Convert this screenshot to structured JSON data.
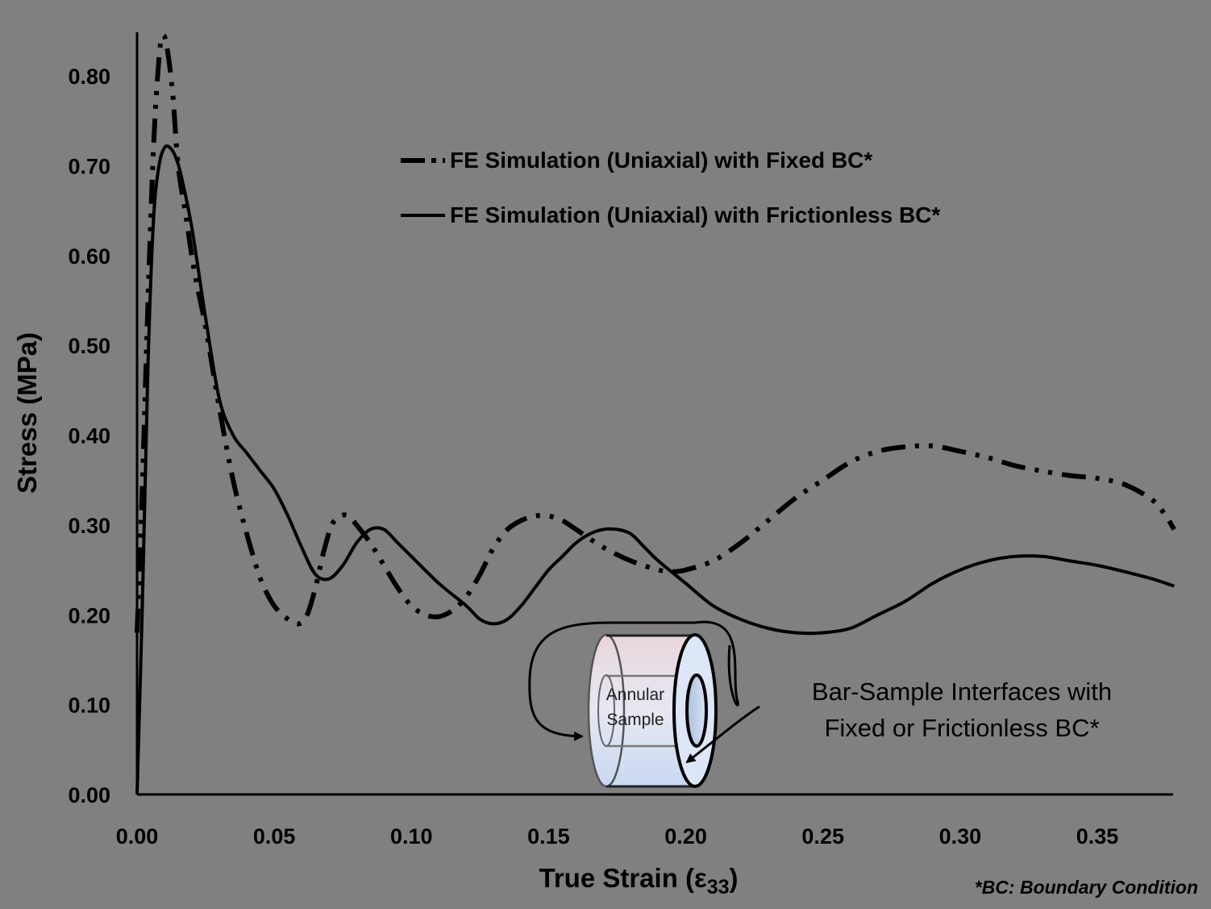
{
  "chart_data": {
    "type": "line",
    "xlabel_main": "True Strain (",
    "xlabel_symbol": "ε",
    "xlabel_sub": "33",
    "xlabel_end": ")",
    "ylabel": "Stress (MPa)",
    "xlim": [
      0,
      0.38
    ],
    "ylim": [
      0,
      0.85
    ],
    "x_ticks": [
      0,
      0.05,
      0.1,
      0.15,
      0.2,
      0.25,
      0.3,
      0.35
    ],
    "x_tick_labels": [
      "0.00",
      "0.05",
      "0.10",
      "0.15",
      "0.20",
      "0.25",
      "0.30",
      "0.35"
    ],
    "y_ticks": [
      0,
      0.1,
      0.2,
      0.3,
      0.4,
      0.5,
      0.6,
      0.7,
      0.8
    ],
    "y_tick_labels": [
      "0.00",
      "0.10",
      "0.20",
      "0.30",
      "0.40",
      "0.50",
      "0.60",
      "0.70",
      "0.80"
    ],
    "grid": false,
    "legend_position": "top-center",
    "series": [
      {
        "name": "FE Simulation (Uniaxial) with Fixed BC*",
        "style": "dash-dot-dot",
        "x": [
          0.0,
          0.002,
          0.004,
          0.006,
          0.008,
          0.0095,
          0.011,
          0.013,
          0.015,
          0.018,
          0.021,
          0.025,
          0.03,
          0.035,
          0.04,
          0.045,
          0.05,
          0.055,
          0.059,
          0.062,
          0.065,
          0.068,
          0.071,
          0.074,
          0.077,
          0.08,
          0.085,
          0.09,
          0.095,
          0.1,
          0.105,
          0.11,
          0.115,
          0.12,
          0.125,
          0.13,
          0.135,
          0.14,
          0.145,
          0.15,
          0.155,
          0.16,
          0.17,
          0.18,
          0.19,
          0.195,
          0.2,
          0.21,
          0.22,
          0.23,
          0.24,
          0.25,
          0.26,
          0.27,
          0.28,
          0.29,
          0.3,
          0.31,
          0.32,
          0.33,
          0.34,
          0.35,
          0.36,
          0.37,
          0.375,
          0.378
        ],
        "y": [
          0.18,
          0.35,
          0.55,
          0.72,
          0.82,
          0.845,
          0.83,
          0.78,
          0.7,
          0.64,
          0.58,
          0.52,
          0.43,
          0.35,
          0.29,
          0.24,
          0.21,
          0.195,
          0.19,
          0.2,
          0.23,
          0.27,
          0.3,
          0.31,
          0.31,
          0.3,
          0.28,
          0.255,
          0.23,
          0.21,
          0.2,
          0.198,
          0.205,
          0.22,
          0.245,
          0.275,
          0.295,
          0.305,
          0.31,
          0.31,
          0.305,
          0.295,
          0.275,
          0.26,
          0.25,
          0.248,
          0.25,
          0.26,
          0.28,
          0.305,
          0.33,
          0.35,
          0.37,
          0.382,
          0.387,
          0.388,
          0.382,
          0.375,
          0.366,
          0.36,
          0.355,
          0.352,
          0.345,
          0.328,
          0.31,
          0.295
        ]
      },
      {
        "name": "FE Simulation (Uniaxial) with Frictionless BC*",
        "style": "solid",
        "x": [
          0.0,
          0.002,
          0.004,
          0.006,
          0.008,
          0.01,
          0.012,
          0.014,
          0.016,
          0.02,
          0.025,
          0.03,
          0.035,
          0.04,
          0.045,
          0.05,
          0.055,
          0.06,
          0.065,
          0.07,
          0.075,
          0.08,
          0.085,
          0.09,
          0.095,
          0.1,
          0.11,
          0.12,
          0.125,
          0.13,
          0.135,
          0.14,
          0.145,
          0.15,
          0.155,
          0.16,
          0.165,
          0.17,
          0.175,
          0.18,
          0.185,
          0.19,
          0.2,
          0.21,
          0.22,
          0.23,
          0.24,
          0.25,
          0.26,
          0.27,
          0.28,
          0.29,
          0.3,
          0.31,
          0.32,
          0.33,
          0.34,
          0.35,
          0.36,
          0.37,
          0.378
        ],
        "y": [
          0.0,
          0.22,
          0.48,
          0.64,
          0.7,
          0.72,
          0.72,
          0.71,
          0.69,
          0.63,
          0.53,
          0.44,
          0.4,
          0.38,
          0.36,
          0.34,
          0.31,
          0.275,
          0.245,
          0.24,
          0.255,
          0.28,
          0.295,
          0.295,
          0.28,
          0.265,
          0.235,
          0.21,
          0.195,
          0.19,
          0.195,
          0.21,
          0.23,
          0.25,
          0.265,
          0.28,
          0.29,
          0.295,
          0.295,
          0.29,
          0.275,
          0.26,
          0.235,
          0.21,
          0.195,
          0.185,
          0.18,
          0.18,
          0.185,
          0.2,
          0.215,
          0.235,
          0.25,
          0.26,
          0.265,
          0.265,
          0.26,
          0.255,
          0.248,
          0.24,
          0.232
        ]
      }
    ]
  },
  "annotation": {
    "sample_label_line1": "Annular",
    "sample_label_line2": "Sample",
    "note_line1": "Bar-Sample Interfaces with",
    "note_line2": "Fixed or Frictionless BC*"
  },
  "footnote": "*BC: Boundary Condition",
  "colors": {
    "background": "#808080",
    "ink": "#000000"
  }
}
